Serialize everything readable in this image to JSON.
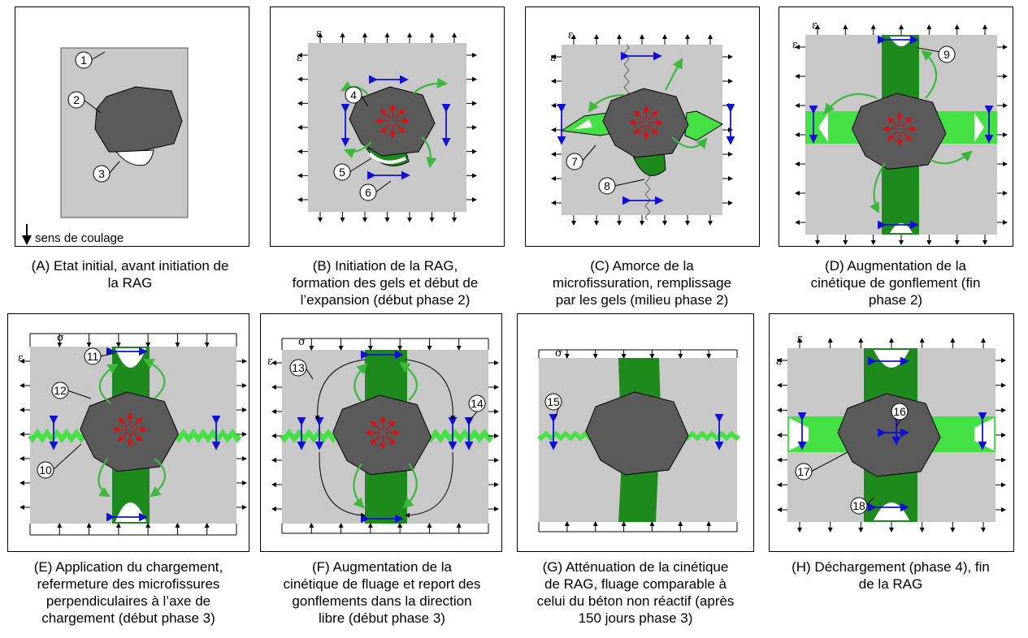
{
  "panels": [
    {
      "caption": "(A) Etat initial, avant initiation de\nla RAG",
      "extra_label": "sens de coulage",
      "callouts": [
        "1",
        "2",
        "3"
      ]
    },
    {
      "caption": "(B) Initiation de la RAG,\nformation des gels et début de\nl’expansion (début phase 2)",
      "callouts": [
        "4",
        "5",
        "6"
      ]
    },
    {
      "caption": "(C) Amorce de la\nmicrofissuration, remplissage\npar les gels (milieu phase 2)",
      "callouts": [
        "7",
        "8"
      ]
    },
    {
      "caption": "(D) Augmentation de la\ncinétique de gonflement (fin\nphase 2)",
      "callouts": [
        "9"
      ]
    },
    {
      "caption": "(E) Application du chargement,\nrefermeture des microfissures\nperpendiculaires à l’axe de\nchargement (début phase 3)",
      "callouts": [
        "10",
        "11",
        "12"
      ]
    },
    {
      "caption": "(F) Augmentation de la\ncinétique de fluage et report des\ngonflements dans la direction\nlibre (début phase 3)",
      "callouts": [
        "13",
        "14"
      ]
    },
    {
      "caption": "(G) Atténuation de la cinétique\nde RAG, fluage comparable à\ncelui du béton non réactif (après\n150 jours phase 3)",
      "callouts": [
        "15"
      ]
    },
    {
      "caption": "(H) Déchargement (phase 4), fin\nde la RAG",
      "callouts": [
        "16",
        "17",
        "18"
      ]
    }
  ],
  "symbols": {
    "epsilon": "ε",
    "sigma": "σ"
  },
  "colors": {
    "concrete": "#c8c8c8",
    "aggregate": "#5a5a5a",
    "gel_dark": "#1e8a1e",
    "gel_light": "#44e044",
    "arrow_red": "#e01010",
    "arrow_blue": "#1010d0",
    "arrow_green": "#3cb83c"
  }
}
